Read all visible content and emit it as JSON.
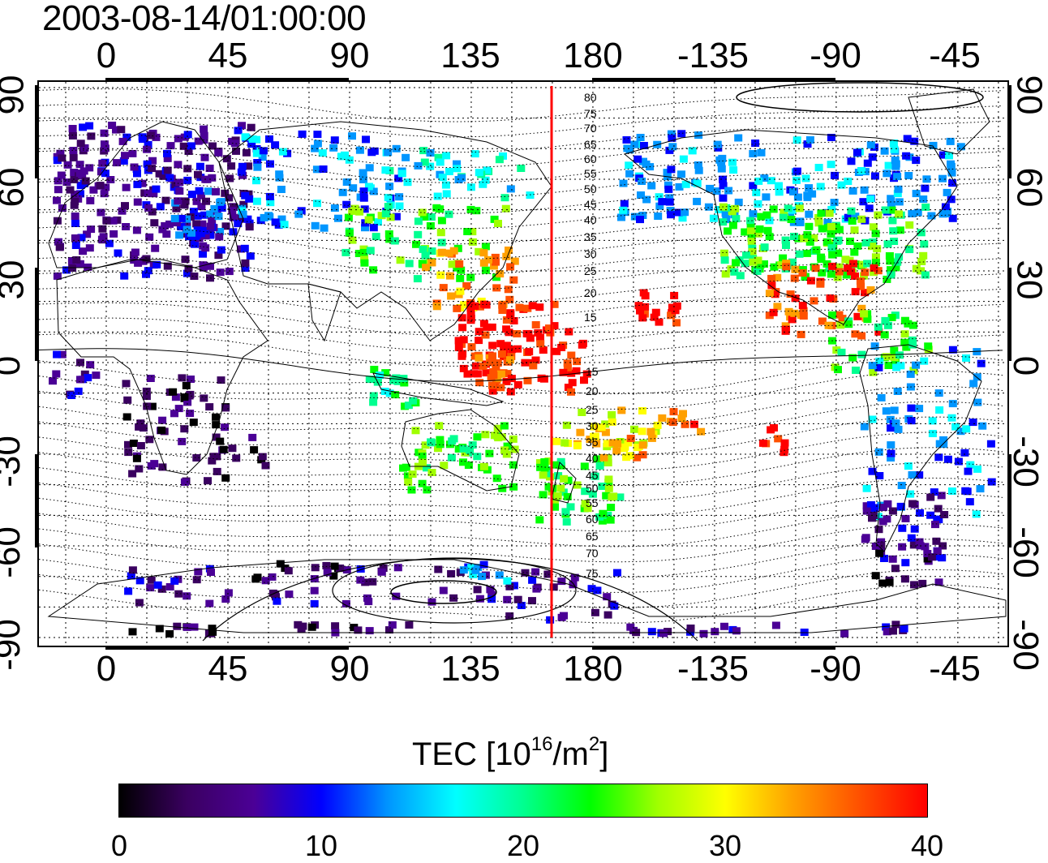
{
  "title": "2003-08-14/01:00:00",
  "map": {
    "lon_labels": [
      "0",
      "45",
      "90",
      "135",
      "180",
      "-135",
      "-90",
      "-45"
    ],
    "lat_labels": [
      "90",
      "60",
      "30",
      "0",
      "-30",
      "-60",
      "-90"
    ],
    "contour_labels": [
      "80",
      "75",
      "70",
      "65",
      "60",
      "55",
      "50",
      "45",
      "40",
      "35",
      "30",
      "25",
      "20",
      "15",
      "15",
      "20",
      "25",
      "30",
      "35",
      "40",
      "45",
      "50",
      "55",
      "60",
      "65",
      "70",
      "75"
    ],
    "marker_color": "#ff0000",
    "marker_longitude": 165
  },
  "colorbar": {
    "label_prefix": "TEC  [10",
    "label_exp1": "16",
    "label_mid": "/m",
    "label_exp2": "2",
    "label_suffix": "]",
    "ticks": [
      "0",
      "10",
      "20",
      "30",
      "40"
    ],
    "colors": [
      "#000000",
      "#3a0060",
      "#4b0096",
      "#0000ff",
      "#0096ff",
      "#00ffff",
      "#00ff90",
      "#00ff00",
      "#a0ff00",
      "#ffff00",
      "#ffa000",
      "#ff5000",
      "#ff0000"
    ]
  }
}
